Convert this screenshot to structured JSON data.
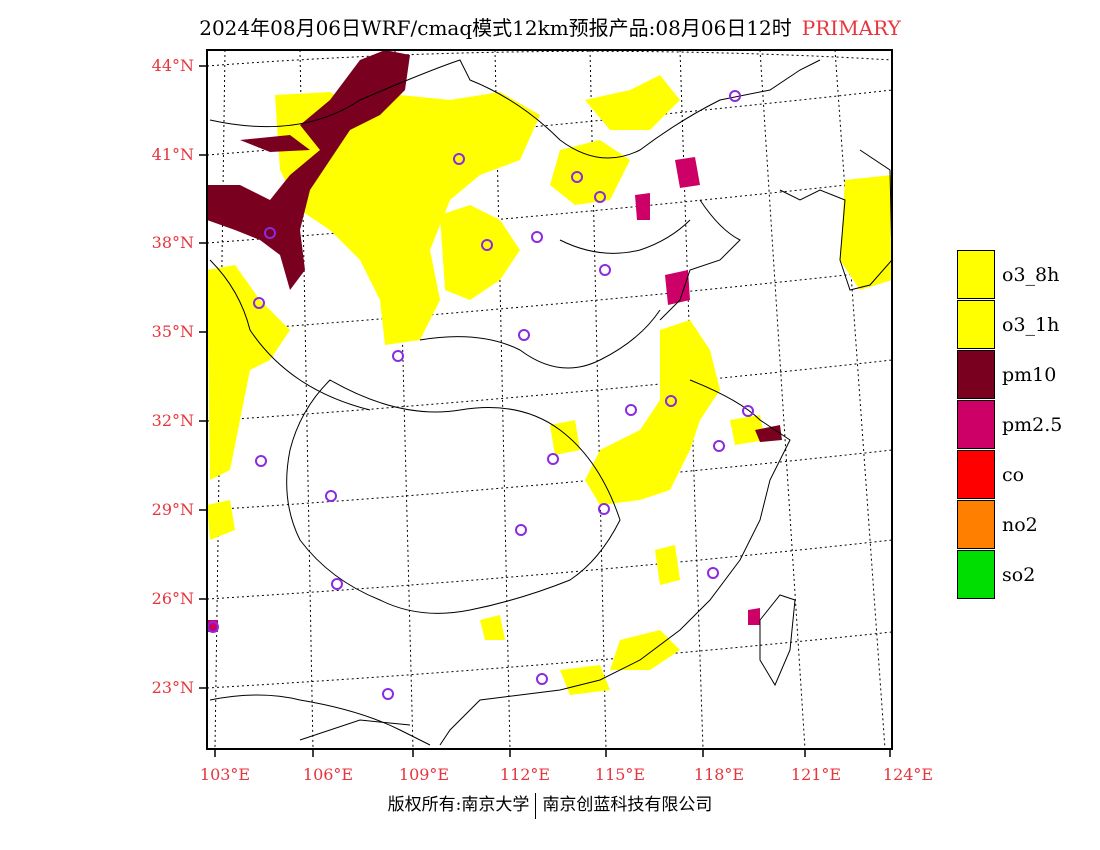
{
  "header": {
    "title": "2024年08月06日WRF/cmaq模式12km预报产品:08月06日12时",
    "primary_label": "PRIMARY"
  },
  "map": {
    "lat_labels": [
      "44°N",
      "41°N",
      "38°N",
      "35°N",
      "32°N",
      "29°N",
      "26°N",
      "23°N"
    ],
    "lon_labels": [
      "103°E",
      "106°E",
      "109°E",
      "112°E",
      "115°E",
      "118°E",
      "121°E",
      "124°E"
    ]
  },
  "legend": {
    "items": [
      {
        "label": "o3_8h",
        "color": "#ffff00"
      },
      {
        "label": "o3_1h",
        "color": "#ffff00"
      },
      {
        "label": "pm10",
        "color": "#7a0020"
      },
      {
        "label": "pm2.5",
        "color": "#cc0066"
      },
      {
        "label": "co",
        "color": "#ff0000"
      },
      {
        "label": "no2",
        "color": "#ff8000"
      },
      {
        "label": "so2",
        "color": "#00dd00"
      }
    ]
  },
  "footer": {
    "left": "版权所有:南京大学",
    "right": "南京创蓝科技有限公司"
  },
  "colors": {
    "axis_label": "#e8343c",
    "station_marker": "#8a2be2"
  }
}
